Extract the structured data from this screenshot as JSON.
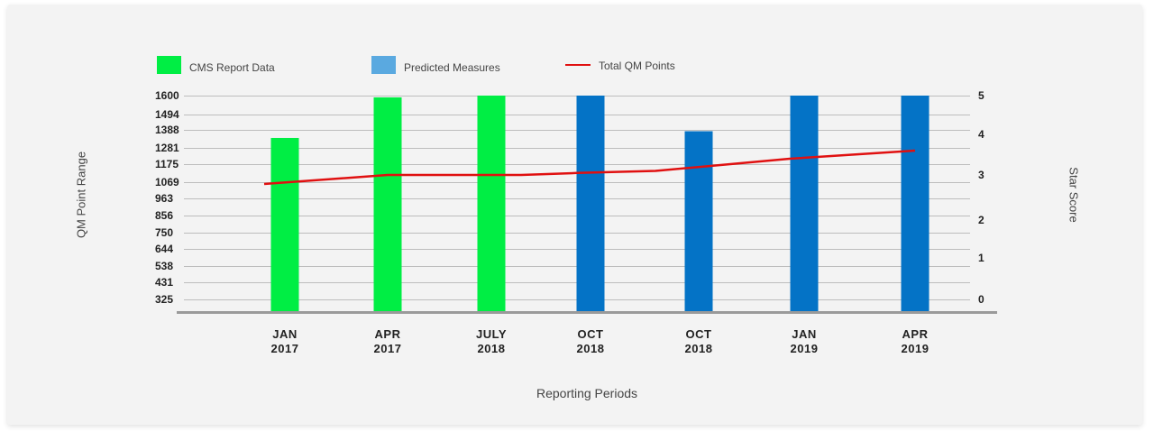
{
  "legend": {
    "items": [
      {
        "label": "CMS Report Data",
        "type": "box",
        "color": "#00ee44"
      },
      {
        "label": "Predicted Measures",
        "type": "box",
        "color": "#5aa9e0"
      },
      {
        "label": "Total QM Points",
        "type": "line",
        "color": "#e01010"
      }
    ]
  },
  "chart_data": {
    "type": "bar",
    "title": "",
    "xlabel": "Reporting Periods",
    "ylabel": "QM Point Range",
    "y2label": "Star Score",
    "categories": [
      [
        "JAN",
        "2017"
      ],
      [
        "APR",
        "2017"
      ],
      [
        "JULY",
        "2018"
      ],
      [
        "OCT",
        "2018"
      ],
      [
        "OCT",
        "2018"
      ],
      [
        "JAN",
        "2019"
      ],
      [
        "APR",
        "2019"
      ]
    ],
    "y_ticks": [
      "1600",
      "1494",
      "1388",
      "1281",
      "1175",
      "1069",
      "963",
      "856",
      "750",
      "644",
      "538",
      "431",
      "325"
    ],
    "y2_ticks": [
      "5",
      "4",
      "3",
      "2",
      "1",
      "0"
    ],
    "ylim": [
      325,
      1600
    ],
    "series": [
      {
        "name": "CMS Report Data",
        "kind": "bar",
        "color": "#00ee44",
        "values": [
          1340,
          1590,
          1600,
          null,
          null,
          null,
          null
        ]
      },
      {
        "name": "Predicted Measures",
        "kind": "bar",
        "color": "#0473c6",
        "values": [
          null,
          null,
          null,
          1600,
          1380,
          1600,
          1600
        ]
      },
      {
        "name": "Total QM Points",
        "kind": "line",
        "color": "#e01010",
        "values": [
          2.8,
          3.0,
          3.0,
          3.05,
          3.1,
          3.4,
          3.6
        ]
      }
    ],
    "grid": true,
    "legend_position": "top-left"
  }
}
